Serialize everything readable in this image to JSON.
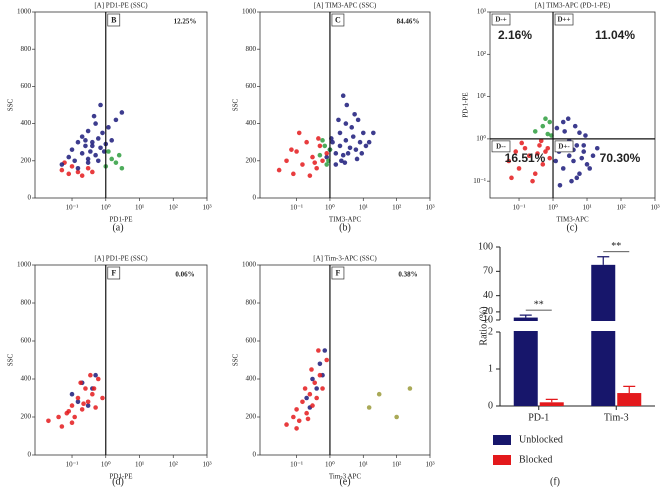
{
  "chart_data": [
    {
      "type": "scatter",
      "label": "(a)",
      "title": "[A] PD1-PE (SSC)",
      "xlabel": "PD1-PE",
      "ylabel": "SSC",
      "xscale": "log",
      "yscale": "linear",
      "xlim": [
        0.008,
        1000
      ],
      "ylim": [
        0,
        1000
      ],
      "xticks": [
        {
          "value": 0.1,
          "label": "10⁻¹"
        },
        {
          "value": 1,
          "label": "10⁰"
        },
        {
          "value": 10,
          "label": "10¹"
        },
        {
          "value": 100,
          "label": "10²"
        },
        {
          "value": 1000,
          "label": "10³"
        }
      ],
      "yticks": [
        0,
        200,
        400,
        600,
        800,
        1000
      ],
      "gate_x": 1,
      "gate_label": "B",
      "percent": "12.25%",
      "series": [
        {
          "color": "#e41a1c",
          "x": [
            0.05,
            0.08,
            0.1,
            0.15,
            0.2,
            0.3,
            0.4,
            0.06
          ],
          "values": [
            150,
            130,
            170,
            140,
            120,
            160,
            140,
            190
          ]
        },
        {
          "color": "#1b1a7a",
          "x": [
            0.05,
            0.08,
            0.1,
            0.12,
            0.15,
            0.2,
            0.2,
            0.25,
            0.3,
            0.3,
            0.35,
            0.4,
            0.5,
            0.5,
            0.6,
            0.7,
            0.8,
            1,
            1.2,
            1.5,
            2,
            3,
            0.15,
            0.3,
            0.45,
            0.6,
            0.9,
            0.25,
            0.4,
            0.7
          ],
          "values": [
            180,
            220,
            260,
            200,
            300,
            240,
            330,
            280,
            210,
            360,
            250,
            300,
            230,
            400,
            320,
            270,
            350,
            290,
            380,
            310,
            420,
            460,
            160,
            190,
            440,
            200,
            250,
            310,
            280,
            500
          ]
        },
        {
          "color": "#2e9e3e",
          "x": [
            1,
            1.5,
            2,
            1.2,
            2.5,
            3
          ],
          "values": [
            170,
            210,
            190,
            250,
            230,
            160
          ]
        }
      ]
    },
    {
      "type": "scatter",
      "label": "(b)",
      "title": "[A] TIM3-APC (SSC)",
      "xlabel": "TIM3-APC",
      "ylabel": "SSC",
      "xscale": "log",
      "yscale": "linear",
      "xlim": [
        0.008,
        1000
      ],
      "ylim": [
        0,
        1000
      ],
      "xticks": [
        {
          "value": 0.1,
          "label": "10⁻¹"
        },
        {
          "value": 1,
          "label": "10⁰"
        },
        {
          "value": 10,
          "label": "10¹"
        },
        {
          "value": 100,
          "label": "10²"
        },
        {
          "value": 1000,
          "label": "10³"
        }
      ],
      "yticks": [
        0,
        200,
        400,
        600,
        800,
        1000
      ],
      "gate_x": 1,
      "gate_label": "C",
      "percent": "84.46%",
      "series": [
        {
          "color": "#1b1a7a",
          "x": [
            0.8,
            1,
            1.2,
            1.5,
            2,
            2,
            2.5,
            3,
            3,
            4,
            5,
            6,
            8,
            10,
            1.5,
            2.2,
            3.5,
            4.5,
            7,
            12,
            1.1,
            2.8,
            5.5,
            9,
            15,
            1.8,
            3.2,
            6.5,
            20,
            2.5
          ],
          "values": [
            220,
            260,
            300,
            240,
            280,
            350,
            230,
            310,
            400,
            270,
            330,
            260,
            300,
            350,
            180,
            200,
            240,
            380,
            420,
            280,
            320,
            190,
            450,
            240,
            300,
            420,
            500,
            210,
            350,
            550
          ]
        },
        {
          "color": "#e41a1c",
          "x": [
            0.03,
            0.05,
            0.08,
            0.1,
            0.15,
            0.2,
            0.3,
            0.4,
            0.5,
            0.6,
            0.8,
            0.12,
            0.25,
            0.35,
            0.07,
            0.45
          ],
          "values": [
            150,
            200,
            130,
            250,
            180,
            300,
            220,
            160,
            280,
            200,
            240,
            350,
            120,
            190,
            260,
            320
          ]
        },
        {
          "color": "#2e9e3e",
          "x": [
            0.5,
            0.7,
            0.9,
            1,
            0.6,
            0.8
          ],
          "values": [
            230,
            280,
            200,
            260,
            310,
            180
          ]
        }
      ]
    },
    {
      "type": "quadrant",
      "label": "(c)",
      "title": "[A] TIM3-APC (PD-1-PE)",
      "xlabel": "TIM3-APC",
      "ylabel": "PD-1-PE",
      "xscale": "log",
      "yscale": "log",
      "xlim": [
        0.014,
        1000
      ],
      "ylim": [
        0.04,
        1000
      ],
      "xticks": [
        {
          "value": 0.1,
          "label": "10⁻¹"
        },
        {
          "value": 1,
          "label": "10⁰"
        },
        {
          "value": 10,
          "label": "10¹"
        },
        {
          "value": 100,
          "label": "10²"
        },
        {
          "value": 1000,
          "label": "10³"
        }
      ],
      "yticks": [
        {
          "value": 0.1,
          "label": "10⁻¹"
        },
        {
          "value": 1,
          "label": "10⁰"
        },
        {
          "value": 10,
          "label": "10¹"
        },
        {
          "value": 100,
          "label": "10²"
        },
        {
          "value": 1000,
          "label": "10³"
        }
      ],
      "gate_x": 1,
      "gate_y": 1,
      "quadrants": [
        {
          "label": "D-+",
          "percent": "2.16%"
        },
        {
          "label": "D++",
          "percent": "11.04%"
        },
        {
          "label": "D--",
          "percent": "16.51%"
        },
        {
          "label": "D+-",
          "percent": "70.30%"
        }
      ],
      "series": [
        {
          "color": "#e41a1c",
          "x": [
            0.05,
            0.08,
            0.1,
            0.15,
            0.2,
            0.3,
            0.4,
            0.5,
            0.6,
            0.8,
            0.12,
            0.25,
            0.35,
            0.7,
            0.06,
            0.45
          ],
          "values": [
            0.3,
            0.5,
            0.2,
            0.6,
            0.4,
            0.15,
            0.7,
            0.25,
            0.5,
            0.35,
            0.8,
            0.1,
            0.45,
            0.6,
            0.12,
            0.9
          ]
        },
        {
          "color": "#1b1a7a",
          "x": [
            1.2,
            1.5,
            2,
            2.5,
            3,
            4,
            5,
            6,
            8,
            10,
            15,
            20,
            1.8,
            3.5,
            7,
            12,
            2.2,
            4.5,
            9,
            1.3,
            2.8,
            6,
            1.6,
            3,
            5,
            8,
            2,
            4
          ],
          "values": [
            0.3,
            0.5,
            0.2,
            0.6,
            0.4,
            0.3,
            0.7,
            0.15,
            0.5,
            0.25,
            0.4,
            0.6,
            0.8,
            0.1,
            0.35,
            0.2,
            1.5,
            2,
            1.2,
            1.8,
            3,
            1.4,
            0.08,
            0.9,
            0.12,
            0.7,
            2.5,
            0.55
          ]
        },
        {
          "color": "#2e9e3e",
          "x": [
            0.3,
            0.5,
            0.7,
            0.8,
            0.9,
            0.6
          ],
          "values": [
            1.5,
            2,
            1.3,
            2.5,
            1.2,
            3
          ]
        }
      ]
    },
    {
      "type": "scatter",
      "label": "(d)",
      "title": "[A] PD1-PE (SSC)",
      "xlabel": "PD1-PE",
      "ylabel": "SSC",
      "xscale": "log",
      "yscale": "linear",
      "xlim": [
        0.008,
        1000
      ],
      "ylim": [
        0,
        1000
      ],
      "xticks": [
        {
          "value": 0.1,
          "label": "10⁻¹"
        },
        {
          "value": 1,
          "label": "10⁰"
        },
        {
          "value": 10,
          "label": "10¹"
        },
        {
          "value": 100,
          "label": "10²"
        },
        {
          "value": 1000,
          "label": "10³"
        }
      ],
      "yticks": [
        0,
        200,
        400,
        600,
        800,
        1000
      ],
      "gate_x": 1,
      "gate_label": "F",
      "percent": "0.06%",
      "series": [
        {
          "color": "#1b1a7a",
          "x": [
            0.1,
            0.2,
            0.3,
            0.5,
            0.15,
            0.4
          ],
          "values": [
            320,
            380,
            260,
            420,
            280,
            350
          ]
        },
        {
          "color": "#e41a1c",
          "x": [
            0.02,
            0.04,
            0.05,
            0.08,
            0.1,
            0.12,
            0.15,
            0.2,
            0.25,
            0.3,
            0.4,
            0.5,
            0.6,
            0.8,
            0.07,
            0.18,
            0.35,
            0.1,
            0.22,
            0.45
          ],
          "values": [
            180,
            200,
            150,
            230,
            260,
            200,
            300,
            240,
            350,
            280,
            320,
            250,
            400,
            300,
            220,
            380,
            420,
            170,
            270,
            350
          ]
        }
      ]
    },
    {
      "type": "scatter",
      "label": "(e)",
      "title": "[A] Tim-3-APC (SSC)",
      "xlabel": "Tim-3 APC",
      "ylabel": "SSC",
      "xscale": "log",
      "yscale": "linear",
      "xlim": [
        0.008,
        1000
      ],
      "ylim": [
        0,
        1000
      ],
      "xticks": [
        {
          "value": 0.1,
          "label": "10⁻¹"
        },
        {
          "value": 1,
          "label": "10⁰"
        },
        {
          "value": 10,
          "label": "10¹"
        },
        {
          "value": 100,
          "label": "10²"
        },
        {
          "value": 1000,
          "label": "10³"
        }
      ],
      "yticks": [
        0,
        200,
        400,
        600,
        800,
        1000
      ],
      "gate_x": 1,
      "gate_label": "F",
      "percent": "0.38%",
      "series": [
        {
          "color": "#1b1a7a",
          "x": [
            0.2,
            0.3,
            0.4,
            0.5,
            0.7,
            0.25,
            0.6
          ],
          "values": [
            300,
            400,
            350,
            480,
            550,
            250,
            420
          ]
        },
        {
          "color": "#e41a1c",
          "x": [
            0.05,
            0.08,
            0.1,
            0.12,
            0.15,
            0.2,
            0.25,
            0.3,
            0.35,
            0.4,
            0.5,
            0.6,
            0.8,
            0.1,
            0.18,
            0.28,
            0.45,
            0.22
          ],
          "values": [
            160,
            200,
            240,
            180,
            280,
            220,
            320,
            260,
            380,
            300,
            420,
            350,
            500,
            140,
            350,
            450,
            550,
            190
          ]
        },
        {
          "color": "#9a9a3a",
          "x": [
            15,
            30,
            100,
            250
          ],
          "values": [
            250,
            320,
            200,
            350
          ]
        }
      ]
    },
    {
      "type": "bar",
      "label": "(f)",
      "ylabel": "Ratio (%)",
      "categories": [
        "PD-1",
        "Tim-3"
      ],
      "ylim": [
        0,
        100
      ],
      "y_segments": [
        {
          "ylim": [
            0,
            2
          ],
          "yticks": [
            0,
            1,
            2
          ]
        },
        {
          "ylim": [
            10,
            100
          ],
          "yticks": [
            10,
            20,
            40,
            70,
            100
          ]
        }
      ],
      "series": [
        {
          "name": "Unblocked",
          "color": "#17166b",
          "values": [
            13,
            78
          ],
          "errors": [
            3,
            10
          ]
        },
        {
          "name": "Blocked",
          "color": "#e3191c",
          "values": [
            0.1,
            0.35
          ],
          "errors": [
            0.08,
            0.18
          ]
        }
      ],
      "annotations": [
        "**",
        "**"
      ],
      "legend": "bottom"
    }
  ]
}
